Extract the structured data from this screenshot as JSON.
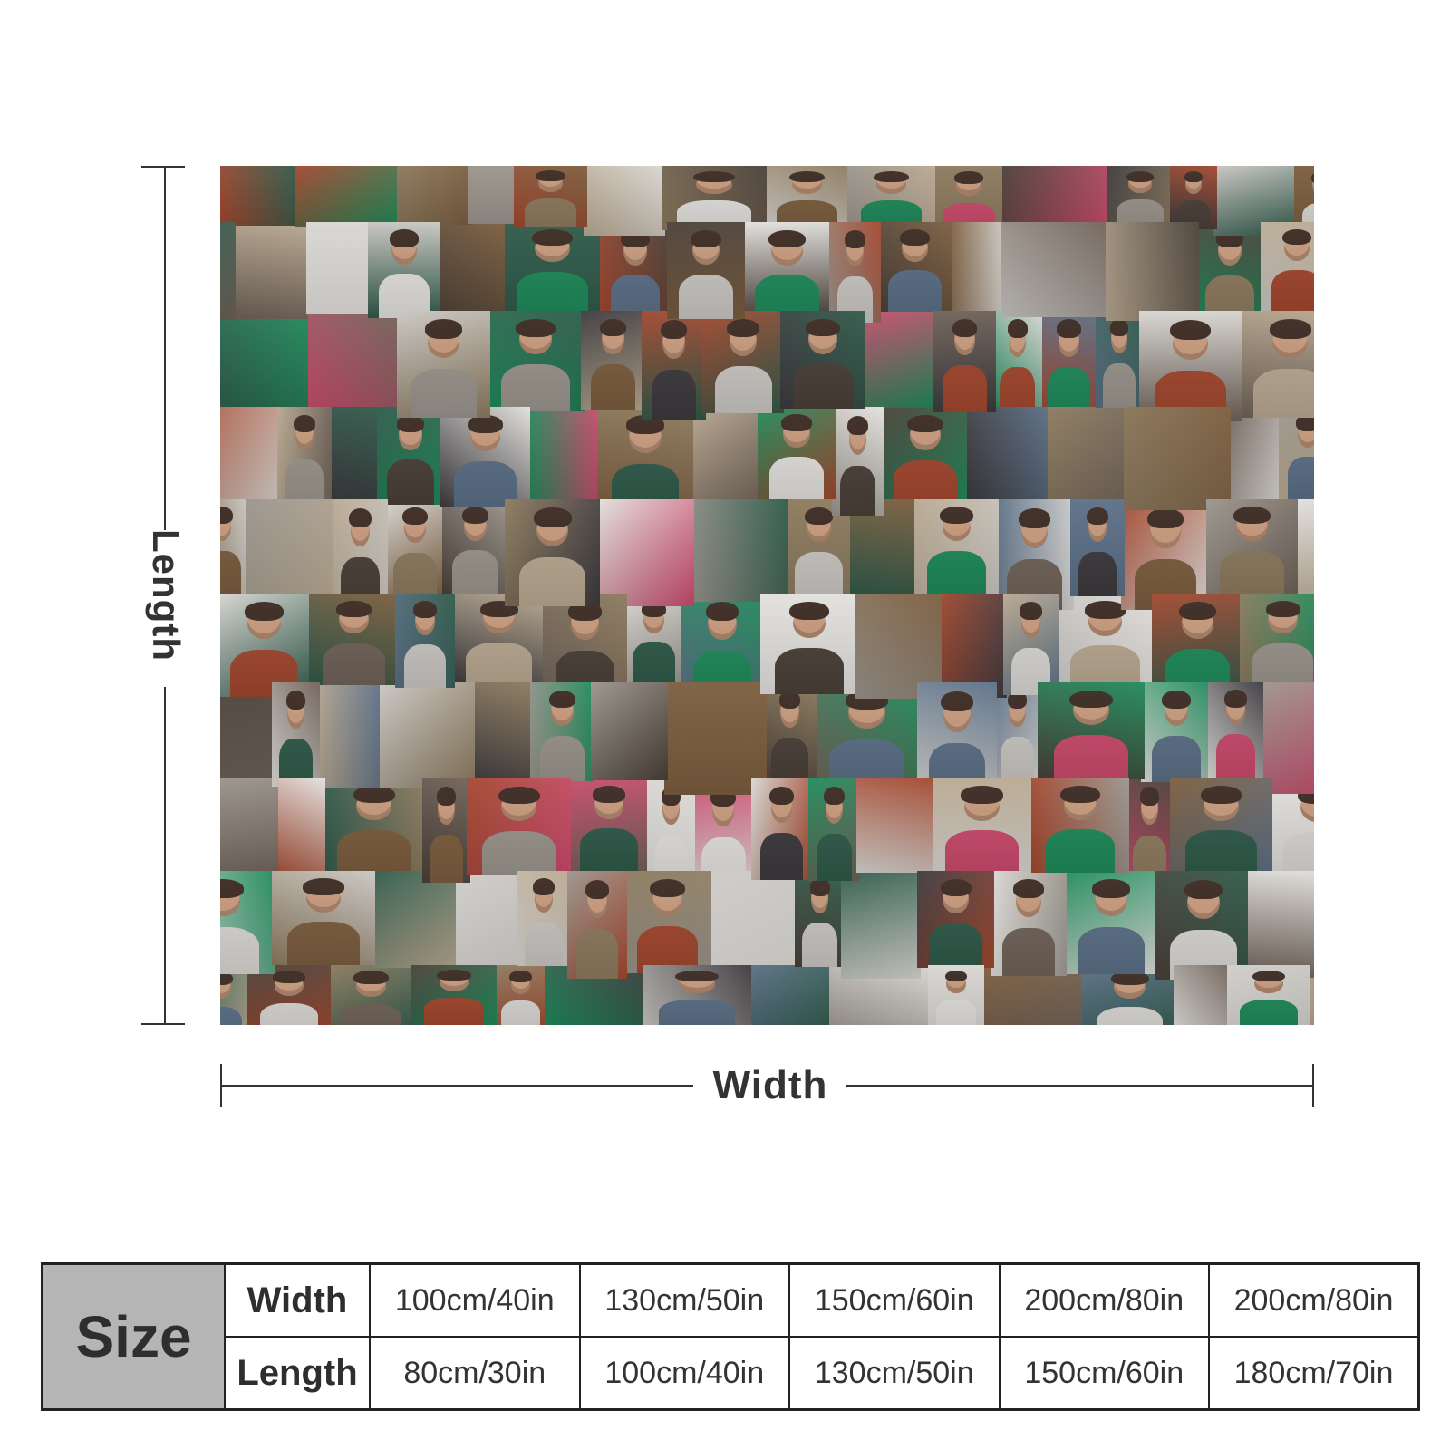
{
  "product_image": {
    "description_role": "blanket-collage",
    "tile_palette": [
      "#6f6258",
      "#2f5a4a",
      "#d8d6d2",
      "#8c7a5e",
      "#b8a890",
      "#3d3a3e",
      "#1f8a5a",
      "#c9c6c2",
      "#a2472e",
      "#5b6f86",
      "#7b5d3e",
      "#e2e0dd",
      "#c94a6b",
      "#4a4038",
      "#9a948c"
    ],
    "skin_color": "#c99b7d",
    "hair_color": "#3b2a22"
  },
  "dimensions": {
    "length_label": "Length",
    "width_label": "Width"
  },
  "size_table": {
    "title": "Size",
    "width_header": "Width",
    "length_header": "Length",
    "widths": [
      "100cm/40in",
      "130cm/50in",
      "150cm/60in",
      "200cm/80in",
      "200cm/80in"
    ],
    "lengths": [
      "80cm/30in",
      "100cm/40in",
      "130cm/50in",
      "150cm/60in",
      "180cm/70in"
    ]
  }
}
